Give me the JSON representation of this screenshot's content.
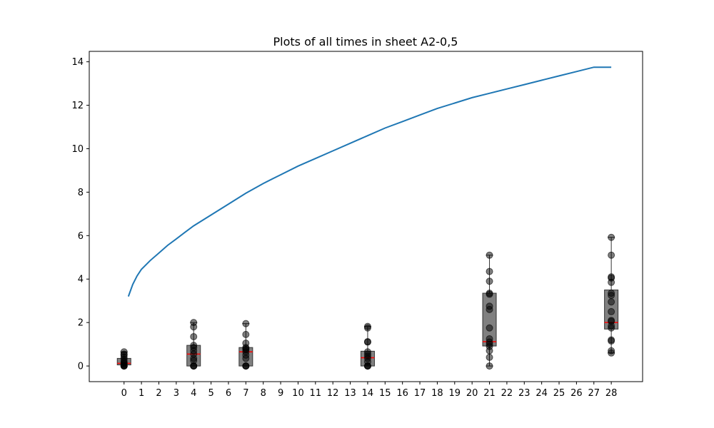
{
  "chart_data": {
    "type": "box",
    "title": "Plots of all times in sheet A2-0,5",
    "xlabel": "",
    "ylabel": "",
    "xlim": [
      -2,
      29.8
    ],
    "ylim": [
      -0.72,
      14.48
    ],
    "x_ticks": [
      0,
      1,
      2,
      3,
      4,
      5,
      6,
      7,
      8,
      9,
      10,
      11,
      12,
      13,
      14,
      15,
      16,
      17,
      18,
      19,
      20,
      21,
      22,
      23,
      24,
      25,
      26,
      27,
      28
    ],
    "y_ticks": [
      0,
      2,
      4,
      6,
      8,
      10,
      12,
      14
    ],
    "grid": false,
    "colors": {
      "line": "#1f77b4",
      "box_fill": "#808080",
      "box_edge": "#333333",
      "median": "#ff0000",
      "points": "#000000"
    },
    "line_series": {
      "x": [
        0.25,
        0.5,
        0.75,
        1,
        1.5,
        2,
        2.5,
        3,
        3.5,
        4,
        5,
        6,
        7,
        8,
        9,
        10,
        11,
        12,
        13,
        14,
        15,
        16,
        17,
        18,
        19,
        20,
        21,
        22,
        23,
        24,
        25,
        26,
        27,
        28
      ],
      "y": [
        3.2,
        3.75,
        4.15,
        4.45,
        4.85,
        5.2,
        5.55,
        5.85,
        6.15,
        6.45,
        6.95,
        7.45,
        7.95,
        8.4,
        8.8,
        9.2,
        9.55,
        9.9,
        10.25,
        10.6,
        10.95,
        11.25,
        11.55,
        11.85,
        12.1,
        12.35,
        12.55,
        12.75,
        12.95,
        13.15,
        13.35,
        13.55,
        13.75,
        13.75
      ]
    },
    "boxes": [
      {
        "x": 0,
        "q1": 0.05,
        "median": 0.12,
        "q3": 0.35,
        "whisker_low": 0.0,
        "whisker_high": 0.65,
        "points": [
          0,
          0,
          0,
          0.05,
          0.1,
          0.15,
          0.2,
          0.3,
          0.4,
          0.5,
          0.55,
          0.65
        ]
      },
      {
        "x": 4,
        "q1": 0.0,
        "median": 0.55,
        "q3": 0.95,
        "whisker_low": 0.0,
        "whisker_high": 2.0,
        "points": [
          0,
          0,
          0,
          0.25,
          0.35,
          0.55,
          0.7,
          0.85,
          0.95,
          1.35,
          1.8,
          2.0
        ]
      },
      {
        "x": 7,
        "q1": 0.0,
        "median": 0.65,
        "q3": 0.85,
        "whisker_low": 0.0,
        "whisker_high": 1.95,
        "points": [
          0,
          0,
          0,
          0.35,
          0.5,
          0.65,
          0.75,
          0.8,
          0.85,
          1.05,
          1.45,
          1.95
        ]
      },
      {
        "x": 14,
        "q1": 0.0,
        "median": 0.38,
        "q3": 0.68,
        "whisker_low": 0.0,
        "whisker_high": 1.82,
        "points": [
          0,
          0,
          0,
          0.2,
          0.35,
          0.45,
          0.55,
          0.65,
          1.1,
          1.12,
          1.75,
          1.82
        ]
      },
      {
        "x": 21,
        "q1": 0.92,
        "median": 1.12,
        "q3": 3.35,
        "whisker_low": 0.0,
        "whisker_high": 5.1,
        "points": [
          0,
          0.4,
          0.7,
          0.9,
          1.0,
          1.1,
          1.25,
          1.75,
          2.6,
          2.75,
          3.3,
          3.35,
          3.9,
          4.35,
          5.1
        ]
      },
      {
        "x": 28,
        "q1": 1.7,
        "median": 2.0,
        "q3": 3.5,
        "whisker_low": 0.6,
        "whisker_high": 5.92,
        "points": [
          0.6,
          0.7,
          1.15,
          1.2,
          1.75,
          1.85,
          2.05,
          2.1,
          2.5,
          2.95,
          3.25,
          3.35,
          3.85,
          4.05,
          4.1,
          5.1,
          5.92
        ]
      }
    ]
  }
}
